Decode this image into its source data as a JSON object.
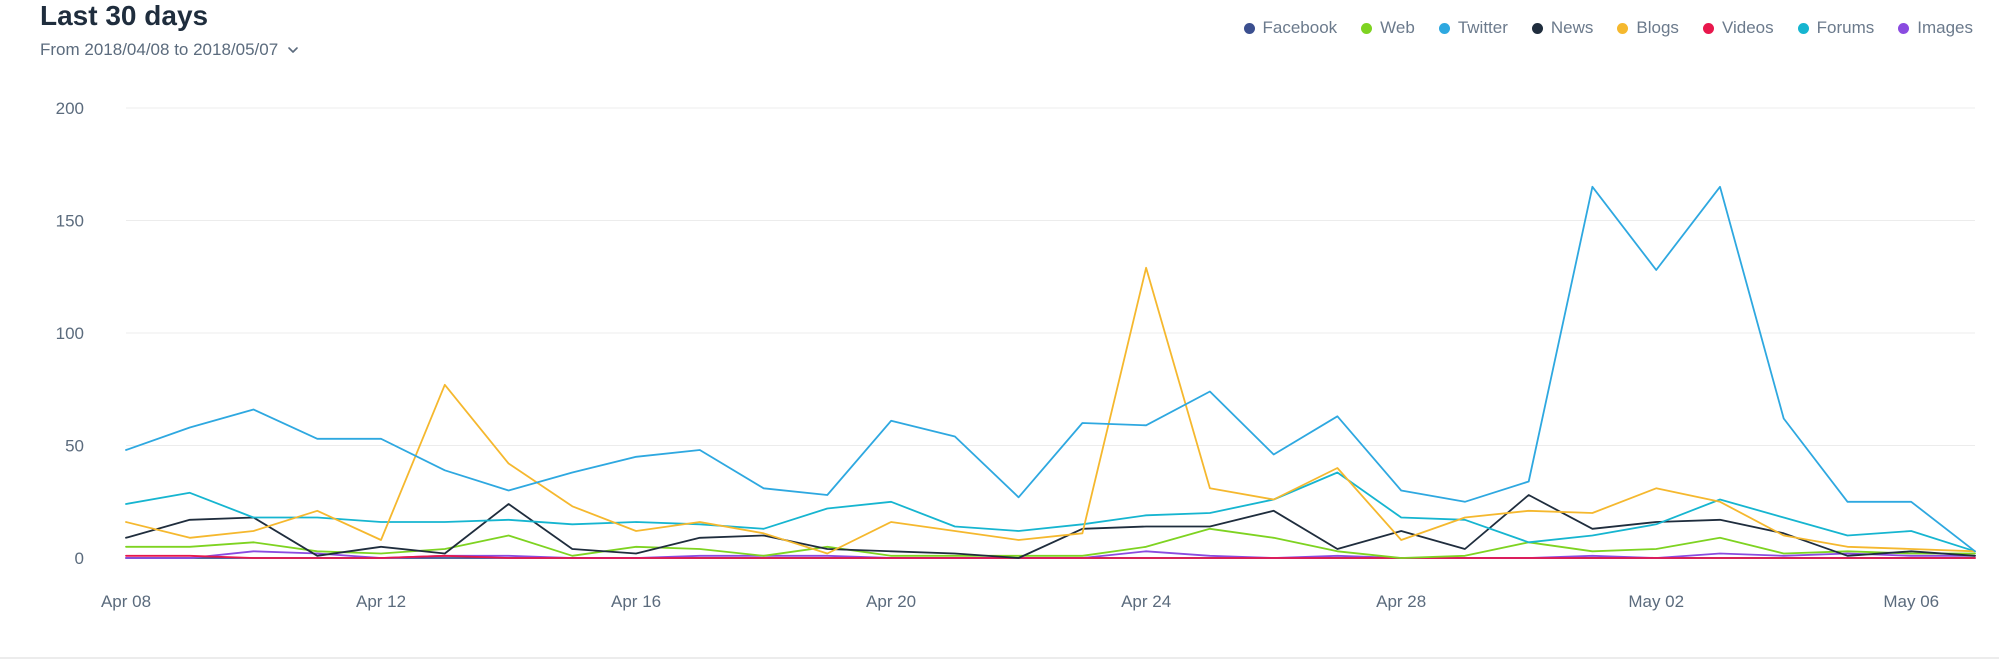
{
  "header": {
    "title": "Last 30 days",
    "range_label": "From 2018/04/08 to 2018/05/07",
    "chevron_icon": "chevron-down-icon"
  },
  "chart_data": {
    "type": "line",
    "title": "Last 30 days",
    "xlabel": "",
    "ylabel": "",
    "ylim": [
      0,
      200
    ],
    "yticks": [
      0,
      50,
      100,
      150,
      200
    ],
    "grid": true,
    "legend": "top-right",
    "x": [
      "Apr 08",
      "Apr 09",
      "Apr 10",
      "Apr 11",
      "Apr 12",
      "Apr 13",
      "Apr 14",
      "Apr 15",
      "Apr 16",
      "Apr 17",
      "Apr 18",
      "Apr 19",
      "Apr 20",
      "Apr 21",
      "Apr 22",
      "Apr 23",
      "Apr 24",
      "Apr 25",
      "Apr 26",
      "Apr 27",
      "Apr 28",
      "Apr 29",
      "Apr 30",
      "May 01",
      "May 02",
      "May 03",
      "May 04",
      "May 05",
      "May 06",
      "May 07"
    ],
    "xticks": [
      "Apr 08",
      "Apr 12",
      "Apr 16",
      "Apr 20",
      "Apr 24",
      "Apr 28",
      "May 02",
      "May 06"
    ],
    "series": [
      {
        "name": "Facebook",
        "color": "#3b4f8f",
        "values": [
          0,
          0,
          0,
          0,
          0,
          0,
          0,
          0,
          0,
          0,
          0,
          0,
          0,
          0,
          0,
          0,
          0,
          0,
          0,
          0,
          0,
          0,
          0,
          0,
          0,
          0,
          0,
          0,
          0,
          0
        ]
      },
      {
        "name": "Web",
        "color": "#7ed321",
        "values": [
          5,
          5,
          7,
          3,
          2,
          4,
          10,
          1,
          5,
          4,
          1,
          5,
          1,
          1,
          1,
          1,
          5,
          13,
          9,
          3,
          0,
          1,
          7,
          3,
          4,
          9,
          2,
          3,
          2,
          2
        ]
      },
      {
        "name": "Twitter",
        "color": "#2ea8e0",
        "values": [
          48,
          58,
          66,
          53,
          53,
          39,
          30,
          38,
          45,
          48,
          31,
          28,
          61,
          54,
          27,
          60,
          59,
          74,
          46,
          63,
          30,
          25,
          34,
          165,
          128,
          165,
          62,
          25,
          25,
          3
        ]
      },
      {
        "name": "News",
        "color": "#1f2d3d",
        "values": [
          9,
          17,
          18,
          1,
          5,
          2,
          24,
          4,
          2,
          9,
          10,
          4,
          3,
          2,
          0,
          13,
          14,
          14,
          21,
          4,
          12,
          4,
          28,
          13,
          16,
          17,
          11,
          1,
          3,
          1
        ]
      },
      {
        "name": "Blogs",
        "color": "#f5b82e",
        "values": [
          16,
          9,
          12,
          21,
          8,
          77,
          42,
          23,
          12,
          16,
          11,
          2,
          16,
          12,
          8,
          11,
          129,
          31,
          26,
          40,
          8,
          18,
          21,
          20,
          31,
          25,
          10,
          5,
          4,
          3
        ]
      },
      {
        "name": "Videos",
        "color": "#e8174c",
        "values": [
          1,
          1,
          0,
          0,
          0,
          1,
          0,
          0,
          0,
          0,
          0,
          0,
          0,
          0,
          0,
          0,
          0,
          0,
          0,
          0,
          0,
          0,
          0,
          0,
          0,
          0,
          0,
          0,
          0,
          0
        ]
      },
      {
        "name": "Forums",
        "color": "#16b5d0",
        "values": [
          24,
          29,
          18,
          18,
          16,
          16,
          17,
          15,
          16,
          15,
          13,
          22,
          25,
          14,
          12,
          15,
          19,
          20,
          26,
          38,
          18,
          17,
          7,
          10,
          15,
          26,
          18,
          10,
          12,
          3
        ]
      },
      {
        "name": "Images",
        "color": "#8a4be0",
        "values": [
          0,
          0,
          3,
          2,
          0,
          1,
          1,
          0,
          0,
          1,
          1,
          1,
          0,
          0,
          0,
          0,
          3,
          1,
          0,
          1,
          0,
          0,
          0,
          1,
          0,
          2,
          1,
          2,
          1,
          1
        ]
      }
    ]
  }
}
